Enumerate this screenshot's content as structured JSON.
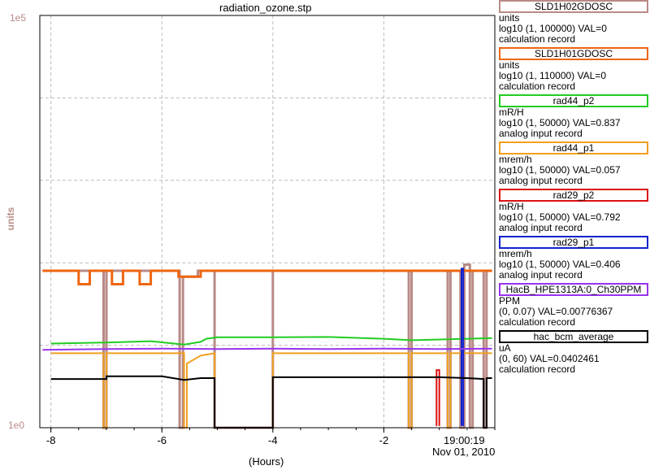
{
  "window": {
    "title": "radiation_ozone.stp",
    "time_label": "19:00:19",
    "date_label": "Nov 01, 2010"
  },
  "chart_data": {
    "type": "line",
    "title": "radiation_ozone.stp",
    "xlabel": "(Hours)",
    "ylabel": "units",
    "x_ticks": [
      "-8",
      "-6",
      "-4",
      "-2"
    ],
    "xlim": [
      -8.2,
      0.0
    ],
    "y_scale": "log",
    "y_top_label": "1e5",
    "y_bottom_label": "1e0",
    "ylim": [
      1,
      100000
    ],
    "grid": true,
    "legend_position": "right",
    "series": [
      {
        "name": "SLD1H02GDOSC",
        "color": "#b98a86",
        "legend_frame": "#b98a86",
        "units": "units",
        "range": "log10 (1, 100000) VAL=0",
        "record": "calculation record",
        "points": [
          [
            -8.15,
            80
          ],
          [
            -7.05,
            80
          ],
          [
            -7.05,
            1
          ],
          [
            -7.0,
            1
          ],
          [
            -7.0,
            80
          ],
          [
            -5.68,
            80
          ],
          [
            -5.68,
            1
          ],
          [
            -5.62,
            1
          ],
          [
            -5.62,
            68
          ],
          [
            -5.35,
            68
          ],
          [
            -5.35,
            80
          ],
          [
            -5.05,
            80
          ],
          [
            -5.05,
            1
          ],
          [
            -4.0,
            1
          ],
          [
            -4.0,
            80
          ],
          [
            -1.55,
            80
          ],
          [
            -1.55,
            1
          ],
          [
            -1.5,
            1
          ],
          [
            -1.5,
            80
          ],
          [
            -0.85,
            80
          ],
          [
            -0.85,
            1
          ],
          [
            -0.8,
            1
          ],
          [
            -0.8,
            80
          ],
          [
            -0.62,
            80
          ],
          [
            -0.62,
            1
          ],
          [
            -0.55,
            1
          ],
          [
            -0.55,
            95
          ],
          [
            -0.45,
            95
          ],
          [
            -0.45,
            1
          ],
          [
            -0.4,
            1
          ],
          [
            -0.4,
            80
          ],
          [
            -0.2,
            80
          ],
          [
            -0.2,
            1
          ],
          [
            -0.15,
            1
          ],
          [
            -0.15,
            80
          ],
          [
            -0.05,
            80
          ]
        ]
      },
      {
        "name": "SLD1H01GDOSC",
        "color": "#ee6611",
        "legend_frame": "#ee6611",
        "units": "units",
        "range": "log10 (1, 110000) VAL=0",
        "record": "calculation record",
        "points": [
          [
            -8.15,
            80
          ],
          [
            -7.5,
            80
          ],
          [
            -7.5,
            55
          ],
          [
            -7.3,
            55
          ],
          [
            -7.3,
            80
          ],
          [
            -6.9,
            80
          ],
          [
            -6.9,
            55
          ],
          [
            -6.7,
            55
          ],
          [
            -6.7,
            80
          ],
          [
            -6.4,
            80
          ],
          [
            -6.4,
            55
          ],
          [
            -6.2,
            55
          ],
          [
            -6.2,
            80
          ],
          [
            -5.7,
            80
          ],
          [
            -5.7,
            68
          ],
          [
            -5.3,
            68
          ],
          [
            -5.3,
            80
          ],
          [
            -0.05,
            80
          ]
        ]
      },
      {
        "name": "rad44_p2",
        "color": "#22cc22",
        "legend_frame": "#22cc22",
        "units": "mR/H",
        "range": "log10 (1, 50000) VAL=0.837",
        "record": "analog input record",
        "points": [
          [
            -8.0,
            10.5
          ],
          [
            -7.0,
            10.8
          ],
          [
            -6.2,
            11.2
          ],
          [
            -5.6,
            10.2
          ],
          [
            -5.3,
            11.0
          ],
          [
            -5.2,
            12.0
          ],
          [
            -5.0,
            12.5
          ],
          [
            -4.0,
            12.5
          ],
          [
            -3.0,
            12.6
          ],
          [
            -2.0,
            12.0
          ],
          [
            -1.5,
            11.5
          ],
          [
            -0.5,
            12.0
          ],
          [
            -0.05,
            12.2
          ]
        ]
      },
      {
        "name": "rad44_p1",
        "color": "#f0a020",
        "legend_frame": "#f0a020",
        "units": "mrem/h",
        "range": "log10 (1, 50000) VAL=0.057",
        "record": "analog input record",
        "points": [
          [
            -8.0,
            8.0
          ],
          [
            -7.05,
            8.0
          ],
          [
            -7.05,
            1
          ],
          [
            -7.0,
            1
          ],
          [
            -7.0,
            8.0
          ],
          [
            -5.6,
            8.0
          ],
          [
            -5.6,
            1
          ],
          [
            -5.55,
            1
          ],
          [
            -5.55,
            6.0
          ],
          [
            -5.3,
            7.5
          ],
          [
            -5.05,
            8.0
          ],
          [
            -5.05,
            1
          ],
          [
            -4.0,
            1
          ],
          [
            -4.0,
            8.0
          ],
          [
            -1.55,
            8.0
          ],
          [
            -1.55,
            1
          ],
          [
            -1.5,
            1
          ],
          [
            -1.5,
            8.0
          ],
          [
            -0.85,
            8.0
          ],
          [
            -0.85,
            1
          ],
          [
            -0.8,
            1
          ],
          [
            -0.8,
            8.0
          ],
          [
            -0.05,
            8.0
          ]
        ]
      },
      {
        "name": "rad29_p2",
        "color": "#dd1111",
        "legend_frame": "#dd1111",
        "units": "mR/H",
        "range": "log10 (1, 50000) VAL=0.792",
        "record": "analog input record",
        "points": [
          [
            -1.05,
            1.05
          ],
          [
            -1.05,
            5.0
          ],
          [
            -1.0,
            5.0
          ],
          [
            -1.0,
            1.05
          ]
        ]
      },
      {
        "name": "rad29_p1",
        "color": "#1122cc",
        "legend_frame": "#1122cc",
        "units": "mrem/h",
        "range": "log10 (1, 50000) VAL=0.406",
        "record": "analog input record",
        "points": [
          [
            -0.6,
            1.05
          ],
          [
            -0.6,
            85
          ],
          [
            -0.57,
            85
          ],
          [
            -0.57,
            1.05
          ]
        ]
      },
      {
        "name": "HacB_HPE1313A:0_Ch30PPM",
        "color": "#9933ee",
        "legend_frame": "#9933ee",
        "units": "PPM",
        "range": "(0, 0.07) VAL=0.00776367",
        "record": "calculation record",
        "points": [
          [
            -8.15,
            8.8
          ],
          [
            -7.0,
            9.0
          ],
          [
            -6.0,
            9.1
          ],
          [
            -5.0,
            9.0
          ],
          [
            -4.0,
            9.1
          ],
          [
            -3.0,
            9.0
          ],
          [
            -2.0,
            9.1
          ],
          [
            -1.0,
            9.0
          ],
          [
            -0.05,
            9.1
          ]
        ]
      },
      {
        "name": "hac_bcm_average",
        "color": "#000000",
        "legend_frame": "#000000",
        "units": "uA",
        "range": "(0, 60) VAL=0.0402461",
        "record": "calculation record",
        "points": [
          [
            -8.0,
            3.9
          ],
          [
            -7.0,
            3.9
          ],
          [
            -7.0,
            4.2
          ],
          [
            -6.0,
            4.2
          ],
          [
            -5.6,
            3.8
          ],
          [
            -5.3,
            4.0
          ],
          [
            -5.05,
            4.0
          ],
          [
            -5.05,
            1
          ],
          [
            -4.0,
            1
          ],
          [
            -4.0,
            4.1
          ],
          [
            -2.0,
            4.1
          ],
          [
            -1.0,
            4.1
          ],
          [
            -0.5,
            4.0
          ],
          [
            -0.2,
            3.9
          ],
          [
            -0.2,
            1
          ],
          [
            -0.15,
            1
          ],
          [
            -0.15,
            4.0
          ],
          [
            -0.05,
            4.0
          ]
        ]
      }
    ]
  }
}
